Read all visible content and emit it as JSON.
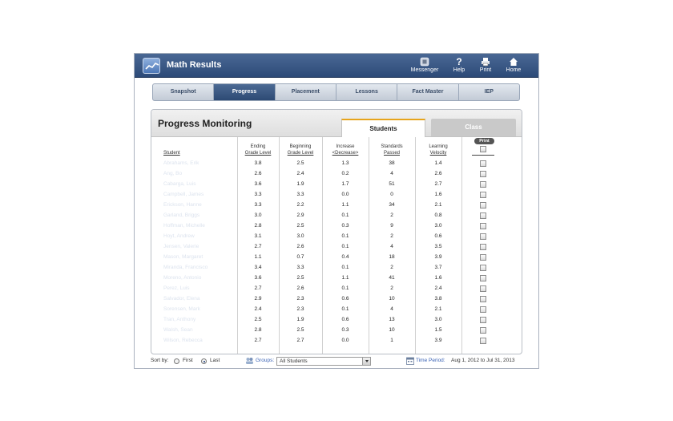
{
  "app": {
    "title": "Math Results",
    "toolbar": [
      {
        "label": "Messenger",
        "icon": "messenger-icon"
      },
      {
        "label": "Help",
        "icon": "help-icon"
      },
      {
        "label": "Print",
        "icon": "printer-icon"
      },
      {
        "label": "Home",
        "icon": "home-icon"
      }
    ]
  },
  "nav_tabs": [
    {
      "label": "Snapshot",
      "active": false
    },
    {
      "label": "Progress",
      "active": true
    },
    {
      "label": "Placement",
      "active": false
    },
    {
      "label": "Lessons",
      "active": false
    },
    {
      "label": "Fact Master",
      "active": false
    },
    {
      "label": "IEP",
      "active": false
    }
  ],
  "panel": {
    "title": "Progress Monitoring",
    "view_tabs": {
      "students": "Students",
      "class": "Class"
    },
    "print_label": "Print"
  },
  "columns": {
    "student": "Student",
    "ending": [
      "Ending",
      "Grade Level"
    ],
    "beginning": [
      "Beginning",
      "Grade Level"
    ],
    "increase": [
      "Increase",
      "<Decrease>"
    ],
    "standards": [
      "Standards",
      "Passed"
    ],
    "velocity": [
      "Learning",
      "Velocity"
    ]
  },
  "rows": [
    {
      "student": "Abrahams, Erik",
      "ending": "3.8",
      "beginning": "2.5",
      "increase": "1.3",
      "standards": "38",
      "velocity": "1.4"
    },
    {
      "student": "Ang, Bo",
      "ending": "2.6",
      "beginning": "2.4",
      "increase": "0.2",
      "standards": "4",
      "velocity": "2.6"
    },
    {
      "student": "Cabarga, Luis",
      "ending": "3.6",
      "beginning": "1.9",
      "increase": "1.7",
      "standards": "51",
      "velocity": "2.7"
    },
    {
      "student": "Campbell, James",
      "ending": "3.3",
      "beginning": "3.3",
      "increase": "0.0",
      "standards": "0",
      "velocity": "1.6"
    },
    {
      "student": "Erickson, Hanne",
      "ending": "3.3",
      "beginning": "2.2",
      "increase": "1.1",
      "standards": "34",
      "velocity": "2.1"
    },
    {
      "student": "Garland, Briggs",
      "ending": "3.0",
      "beginning": "2.9",
      "increase": "0.1",
      "standards": "2",
      "velocity": "0.8"
    },
    {
      "student": "Hoffman, Michelle",
      "ending": "2.8",
      "beginning": "2.5",
      "increase": "0.3",
      "standards": "9",
      "velocity": "3.0"
    },
    {
      "student": "Hoyt, Andrew",
      "ending": "3.1",
      "beginning": "3.0",
      "increase": "0.1",
      "standards": "2",
      "velocity": "0.6"
    },
    {
      "student": "Jensen, Valerie",
      "ending": "2.7",
      "beginning": "2.6",
      "increase": "0.1",
      "standards": "4",
      "velocity": "3.5"
    },
    {
      "student": "Mason, Margaret",
      "ending": "1.1",
      "beginning": "0.7",
      "increase": "0.4",
      "standards": "18",
      "velocity": "3.9"
    },
    {
      "student": "Miranda, Francisco",
      "ending": "3.4",
      "beginning": "3.3",
      "increase": "0.1",
      "standards": "2",
      "velocity": "3.7"
    },
    {
      "student": "Moreno, Antonio",
      "ending": "3.6",
      "beginning": "2.5",
      "increase": "1.1",
      "standards": "41",
      "velocity": "1.6"
    },
    {
      "student": "Perez, Luis",
      "ending": "2.7",
      "beginning": "2.6",
      "increase": "0.1",
      "standards": "2",
      "velocity": "2.4"
    },
    {
      "student": "Salvador, Elena",
      "ending": "2.9",
      "beginning": "2.3",
      "increase": "0.6",
      "standards": "10",
      "velocity": "3.8"
    },
    {
      "student": "Sorensen, Mark",
      "ending": "2.4",
      "beginning": "2.3",
      "increase": "0.1",
      "standards": "4",
      "velocity": "2.1"
    },
    {
      "student": "Tran, Anthony",
      "ending": "2.5",
      "beginning": "1.9",
      "increase": "0.6",
      "standards": "13",
      "velocity": "3.0"
    },
    {
      "student": "Walsh, Sean",
      "ending": "2.8",
      "beginning": "2.5",
      "increase": "0.3",
      "standards": "10",
      "velocity": "1.5"
    },
    {
      "student": "Wilson, Rebecca",
      "ending": "2.7",
      "beginning": "2.7",
      "increase": "0.0",
      "standards": "1",
      "velocity": "3.9"
    }
  ],
  "footer": {
    "sort_by": "Sort by:",
    "first": "First",
    "last": "Last",
    "groups_label": "Groups:",
    "group_value": "All Students",
    "time_period_label": "Time Period:",
    "time_period_value": "Aug 1, 2012 to Jul 31, 2013"
  },
  "colors": {
    "accent": "#2c4a78",
    "tab_highlight": "#e7a41c",
    "link": "#3b63b5"
  }
}
